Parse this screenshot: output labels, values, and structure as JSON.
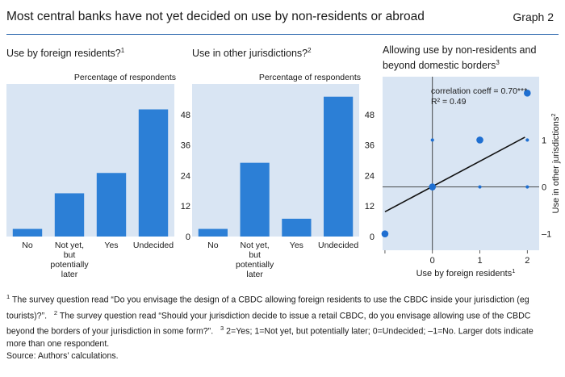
{
  "header": {
    "title": "Most central banks have not yet decided on use by non-residents or abroad",
    "graph_label": "Graph 2"
  },
  "chart_data": [
    {
      "type": "bar",
      "title": "Use by foreign residents?",
      "title_note": "1",
      "ylabel": "Percentage of respondents",
      "categories": [
        "No",
        "Not yet, but potentially later",
        "Yes",
        "Undecided"
      ],
      "category_lines": [
        [
          "No"
        ],
        [
          "Not yet,",
          "but",
          "potentially",
          "later"
        ],
        [
          "Yes"
        ],
        [
          "Undecided"
        ]
      ],
      "values": [
        3,
        17,
        25,
        50
      ],
      "yticks": [
        0,
        12,
        24,
        36,
        48
      ],
      "ylim": [
        0,
        60
      ],
      "grid": false,
      "bar_color": "#2c7fd6",
      "panel_bg": "#d9e5f3"
    },
    {
      "type": "bar",
      "title": "Use in other jurisdictions?",
      "title_note": "2",
      "ylabel": "Percentage of respondents",
      "categories": [
        "No",
        "Not yet, but potentially later",
        "Yes",
        "Undecided"
      ],
      "category_lines": [
        [
          "No"
        ],
        [
          "Not yet,",
          "but",
          "potentially",
          "later"
        ],
        [
          "Yes"
        ],
        [
          "Undecided"
        ]
      ],
      "values": [
        3,
        29,
        7,
        55
      ],
      "yticks": [
        0,
        12,
        24,
        36,
        48
      ],
      "ylim": [
        0,
        60
      ],
      "grid": false,
      "bar_color": "#2c7fd6",
      "panel_bg": "#d9e5f3"
    },
    {
      "type": "scatter",
      "title_lines": [
        "Allowing use by non-residents and",
        "beyond domestic borders"
      ],
      "title_note": "3",
      "xlabel": "Use by foreign residents",
      "xlabel_note": "1",
      "ylabel": "Use in other jurisdictions",
      "ylabel_note": "2",
      "xticks": [
        -1,
        0,
        1,
        2
      ],
      "xtick_labels": [
        "",
        "0",
        "1",
        "2"
      ],
      "yticks": [
        -1,
        0,
        1
      ],
      "ytick_labels": [
        "–1",
        "0",
        "1"
      ],
      "xlim": [
        -1.05,
        2.25
      ],
      "ylim": [
        -1.35,
        2.35
      ],
      "annotation_lines": [
        "correlation coeff = 0.70***",
        "R² = 0.49"
      ],
      "points": [
        {
          "x": -1,
          "y": -1,
          "size": 2
        },
        {
          "x": 0,
          "y": 0,
          "size": 2
        },
        {
          "x": 0,
          "y": 1,
          "size": 1
        },
        {
          "x": 1,
          "y": 1,
          "size": 2
        },
        {
          "x": 1,
          "y": 0,
          "size": 1
        },
        {
          "x": 2,
          "y": 2,
          "size": 2
        },
        {
          "x": 2,
          "y": 1,
          "size": 1
        },
        {
          "x": 2,
          "y": 0,
          "size": 1
        }
      ],
      "fit_line": {
        "x": [
          -1,
          1.95
        ],
        "y": [
          -0.53,
          1.06
        ]
      },
      "point_color": "#1f6fd1",
      "panel_bg": "#d9e5f3"
    }
  ],
  "footnotes": {
    "n1": "1",
    "t1": "The survey question read “Do you envisage the design of a CBDC allowing foreign residents to use the CBDC inside your jurisdiction (eg",
    "t1b": "tourists)?”.",
    "n2": "2",
    "t2": "The survey question read “Should your jurisdiction decide to issue a retail CBDC, do you envisage allowing use of the CBDC",
    "t2b": "beyond the borders of your jurisdiction in some form?”.",
    "n3": "3",
    "t3": "2=Yes; 1=Not yet, but potentially later; 0=Undecided; –1=No. Larger dots indicate",
    "t3b": "more than one respondent.",
    "source": "Source: Authors’ calculations."
  }
}
